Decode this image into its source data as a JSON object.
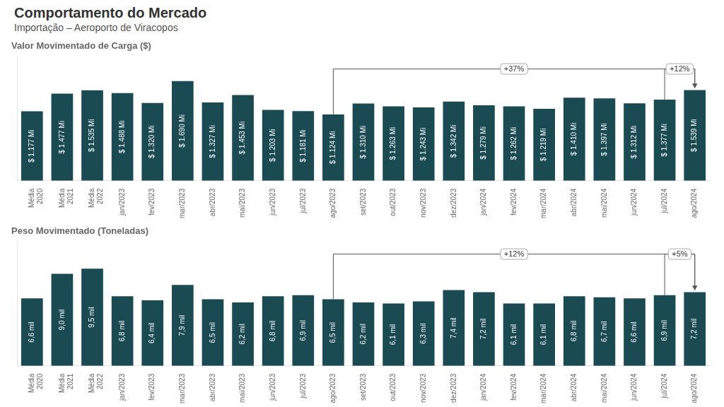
{
  "title": "Comportamento do Mercado",
  "subtitle": "Importação – Aeroporto de Viracopos",
  "chart_data": [
    {
      "type": "bar",
      "title": "Valor Movimentado de Carga ($)",
      "categories": [
        "Média\n2020",
        "Média\n2021",
        "Média\n2022",
        "jan/2023",
        "fev/2023",
        "mar/2023",
        "abr/2023",
        "mai/2023",
        "jun/2023",
        "jul/2023",
        "ago/2023",
        "set/2023",
        "out/2023",
        "nov/2023",
        "dez/2023",
        "jan/2024",
        "fev/2024",
        "mar/2024",
        "abr/2024",
        "mai/2024",
        "jun/2024",
        "jul/2024",
        "ago/2024"
      ],
      "values": [
        1177,
        1477,
        1535,
        1488,
        1320,
        1690,
        1327,
        1453,
        1203,
        1181,
        1124,
        1310,
        1263,
        1243,
        1342,
        1279,
        1262,
        1219,
        1410,
        1397,
        1312,
        1377,
        1539
      ],
      "value_labels": [
        "$ 1.177 Mi",
        "$ 1.477 Mi",
        "$ 1.535 Mi",
        "$ 1.488 Mi",
        "$ 1.320 Mi",
        "$ 1.690 Mi",
        "$ 1.327 Mi",
        "$ 1.453 Mi",
        "$ 1.203 Mi",
        "$ 1.181 Mi",
        "$ 1.124 Mi",
        "$ 1.310 Mi",
        "$ 1.263 Mi",
        "$ 1.243 Mi",
        "$ 1.342 Mi",
        "$ 1.279 Mi",
        "$ 1.262 Mi",
        "$ 1.219 Mi",
        "$ 1.410 Mi",
        "$ 1.397 Mi",
        "$ 1.312 Mi",
        "$ 1.377 Mi",
        "$ 1.539 Mi"
      ],
      "data_labels": true,
      "color": "#1a4a52",
      "ylim": [
        0,
        2112.5
      ],
      "grid": false,
      "tick_labels": "x",
      "annotations": [
        {
          "text": "+37%",
          "from": "ago/2023",
          "to": "ago/2024"
        },
        {
          "text": "+12%",
          "from": "jul/2024",
          "to": "ago/2024"
        }
      ]
    },
    {
      "type": "bar",
      "title": "Peso Movimentado (Toneladas)",
      "categories": [
        "Média\n2020",
        "Média\n2021",
        "Média\n2022",
        "jan/2023",
        "fev/2023",
        "mar/2023",
        "abr/2023",
        "mai/2023",
        "jun/2023",
        "jul/2023",
        "ago/2023",
        "set/2023",
        "out/2023",
        "nov/2023",
        "dez/2023",
        "jan/2024",
        "fev/2024",
        "mar/2024",
        "abr/2024",
        "mai/2024",
        "jun/2024",
        "jul/2024",
        "ago/2024"
      ],
      "values": [
        6.6,
        9.0,
        9.5,
        6.8,
        6.4,
        7.9,
        6.5,
        6.2,
        6.8,
        6.9,
        6.5,
        6.2,
        6.1,
        6.3,
        7.4,
        7.2,
        6.1,
        6.1,
        6.8,
        6.7,
        6.6,
        6.9,
        7.2
      ],
      "value_labels": [
        "6,6 mil",
        "9,0 mil",
        "9,5 mil",
        "6,8 mil",
        "6,4 mil",
        "7,9 mil",
        "6,5 mil",
        "6,2 mil",
        "6,8 mil",
        "6,9 mil",
        "6,5 mil",
        "6,2 mil",
        "6,1 mil",
        "6,3 mil",
        "7,4 mil",
        "7,2 mil",
        "6,1 mil",
        "6,1 mil",
        "6,8 mil",
        "6,7 mil",
        "6,6 mil",
        "6,9 mil",
        "7,2 mil"
      ],
      "data_labels": true,
      "color": "#1a4a52",
      "ylim": [
        0,
        12.16
      ],
      "grid": false,
      "tick_labels": "x",
      "annotations": [
        {
          "text": "+12%",
          "from": "ago/2023",
          "to": "ago/2024"
        },
        {
          "text": "+5%",
          "from": "jul/2024",
          "to": "ago/2024"
        }
      ]
    }
  ]
}
